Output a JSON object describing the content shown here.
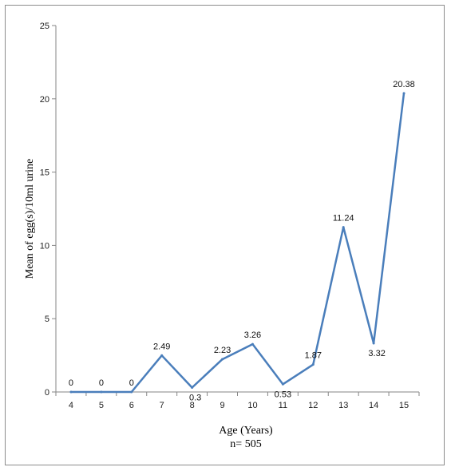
{
  "chart_data": {
    "type": "line",
    "x": [
      4,
      5,
      6,
      7,
      8,
      9,
      10,
      11,
      12,
      13,
      14,
      15
    ],
    "series": [
      {
        "values": [
          0,
          0,
          0,
          2.49,
          0.3,
          2.23,
          3.26,
          0.53,
          1.87,
          11.24,
          3.32,
          20.38
        ],
        "data_labels": [
          "0",
          "0",
          "0",
          "2.49",
          "0.3",
          "2.23",
          "3.26",
          "0.53",
          "1.87",
          "11.24",
          "3.32",
          "20.38"
        ],
        "color": "#4a7ebb"
      }
    ],
    "title": "",
    "xlabel": "Age (Years)",
    "xlabel_line2": "n= 505",
    "ylabel": "Mean of egg(s)/10ml urine",
    "ylim": [
      0,
      25
    ],
    "yticks": [
      0,
      5,
      10,
      15,
      20,
      25
    ],
    "grid": false,
    "legend": "none"
  }
}
